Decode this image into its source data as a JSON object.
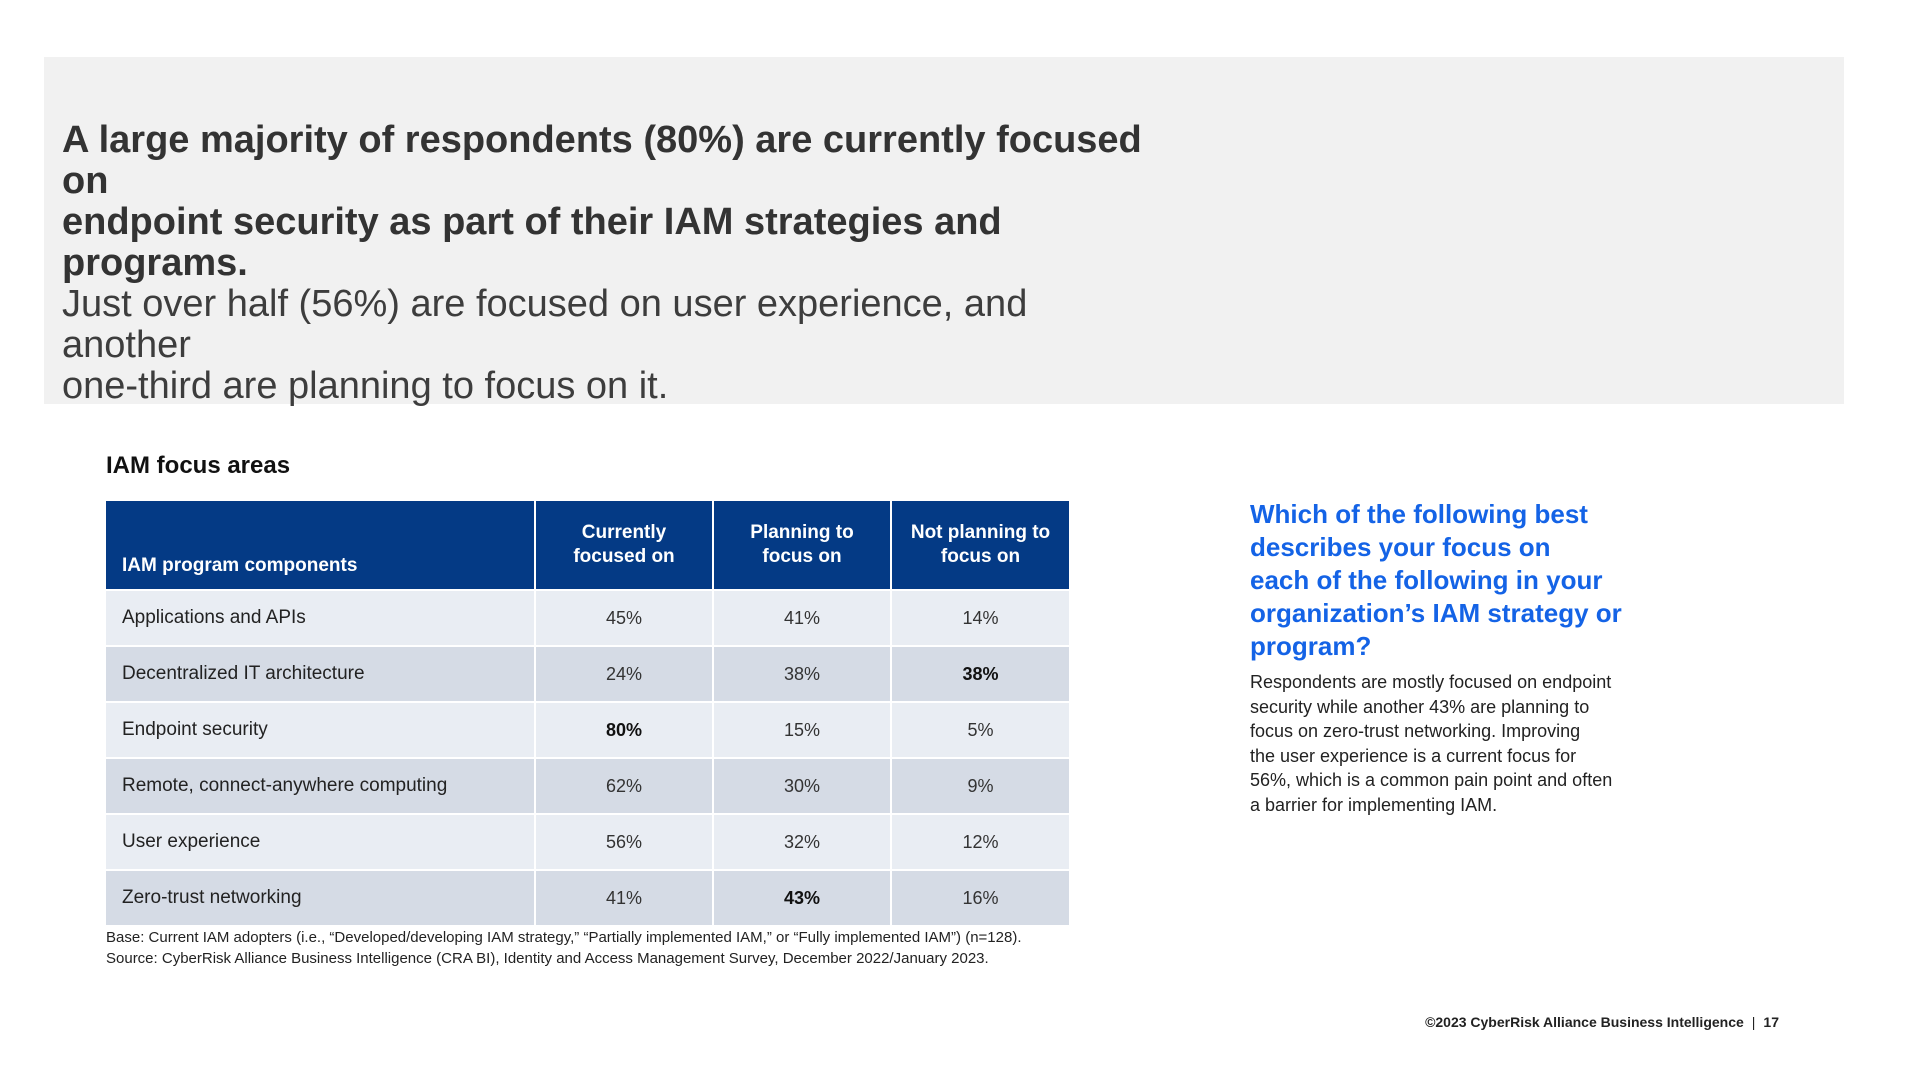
{
  "hero": {
    "bold_line_1": "A large majority of respondents (80%) are currently focused on",
    "bold_line_2": "endpoint security as part of their IAM strategies and programs.",
    "normal_line_1": "Just over half (56%) are focused on user experience, and another",
    "normal_line_2": "one-third are planning to focus on it."
  },
  "chart_data": {
    "type": "table",
    "title": "IAM focus areas",
    "columns": [
      "IAM program components",
      "Currently focused on",
      "Planning to focus on",
      "Not planning to focus on"
    ],
    "rows": [
      {
        "label": "Applications and APIs",
        "values": [
          "45%",
          "41%",
          "14%"
        ],
        "bold": [
          false,
          false,
          false
        ]
      },
      {
        "label": "Decentralized IT architecture",
        "values": [
          "24%",
          "38%",
          "38%"
        ],
        "bold": [
          false,
          false,
          true
        ]
      },
      {
        "label": "Endpoint security",
        "values": [
          "80%",
          "15%",
          "5%"
        ],
        "bold": [
          true,
          false,
          false
        ]
      },
      {
        "label": "Remote, connect-anywhere computing",
        "values": [
          "62%",
          "30%",
          "9%"
        ],
        "bold": [
          false,
          false,
          false
        ]
      },
      {
        "label": "User experience",
        "values": [
          "56%",
          "32%",
          "12%"
        ],
        "bold": [
          false,
          false,
          false
        ]
      },
      {
        "label": "Zero-trust networking",
        "values": [
          "41%",
          "43%",
          "16%"
        ],
        "bold": [
          false,
          true,
          false
        ]
      }
    ],
    "header_color": "#043a85",
    "row_colors": [
      "#e9edf3",
      "#d5dbe5"
    ]
  },
  "table_headers": {
    "col1": "IAM program components",
    "col2_line1": "Currently",
    "col2_line2": "focused on",
    "col3_line1": "Planning to",
    "col3_line2": "focus on",
    "col4_line1": "Not planning to",
    "col4_line2": "focus on"
  },
  "footnote": {
    "base": "Base: Current IAM adopters (i.e., “Developed/developing IAM strategy,” “Partially implemented IAM,” or “Fully implemented IAM”) (n=128).",
    "source": "Source: CyberRisk Alliance Business Intelligence (CRA BI), Identity and Access Management Survey, December 2022/January 2023."
  },
  "side": {
    "question_lines": [
      "Which of the following best",
      "describes your focus on",
      "each of the following in your",
      "organization’s IAM strategy or",
      "program?"
    ],
    "body_lines": [
      "Respondents are mostly focused on endpoint",
      "security while another 43% are planning to",
      "focus on zero-trust networking. Improving",
      "the user experience is a current focus for",
      "56%, which is a common pain point and often",
      "a barrier for implementing IAM."
    ],
    "accent_color": "#1463e6"
  },
  "footer": {
    "copyright": "©2023 CyberRisk Alliance Business Intelligence",
    "separator": "|",
    "page_number": "17"
  }
}
